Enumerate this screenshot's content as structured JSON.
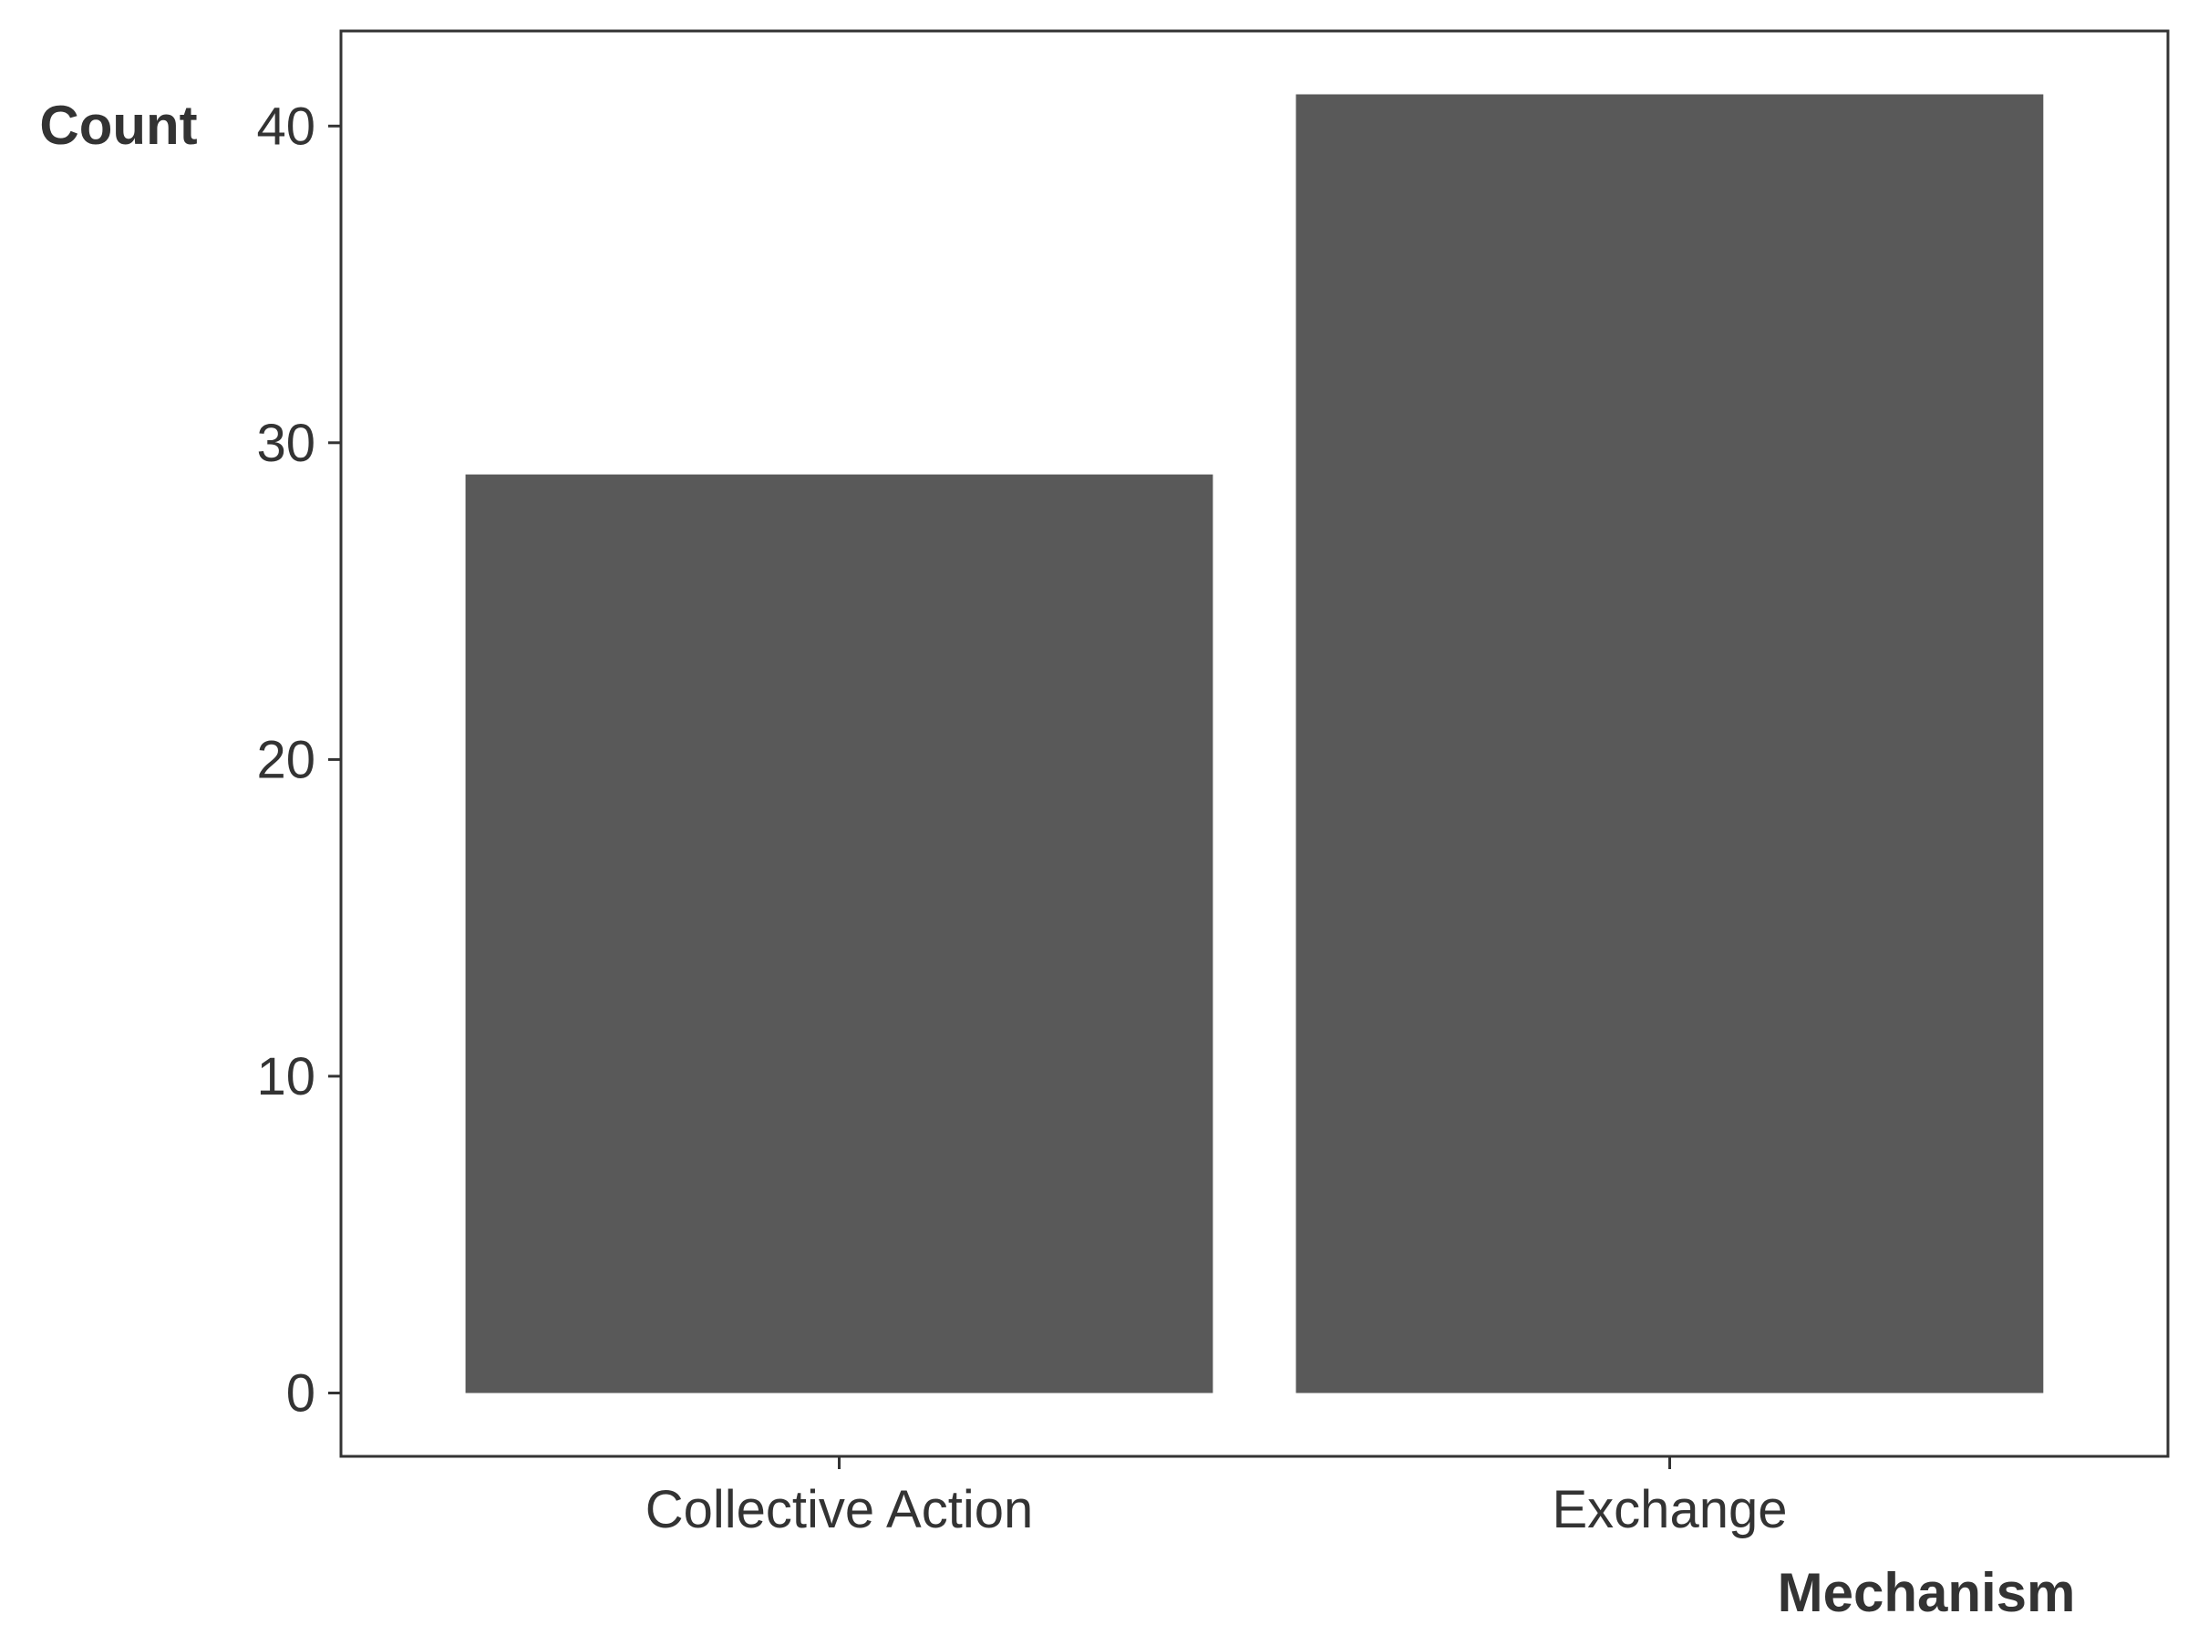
{
  "chart_data": {
    "type": "bar",
    "title": "",
    "xlabel": "Mechanism",
    "ylabel": "Count",
    "categories": [
      "Collective Action",
      "Exchange"
    ],
    "values": [
      29,
      41
    ],
    "ylim": [
      -2,
      43
    ],
    "yticks": [
      0,
      10,
      20,
      30,
      40
    ],
    "bar_color": "#595959",
    "grid": false,
    "legend": "none"
  }
}
